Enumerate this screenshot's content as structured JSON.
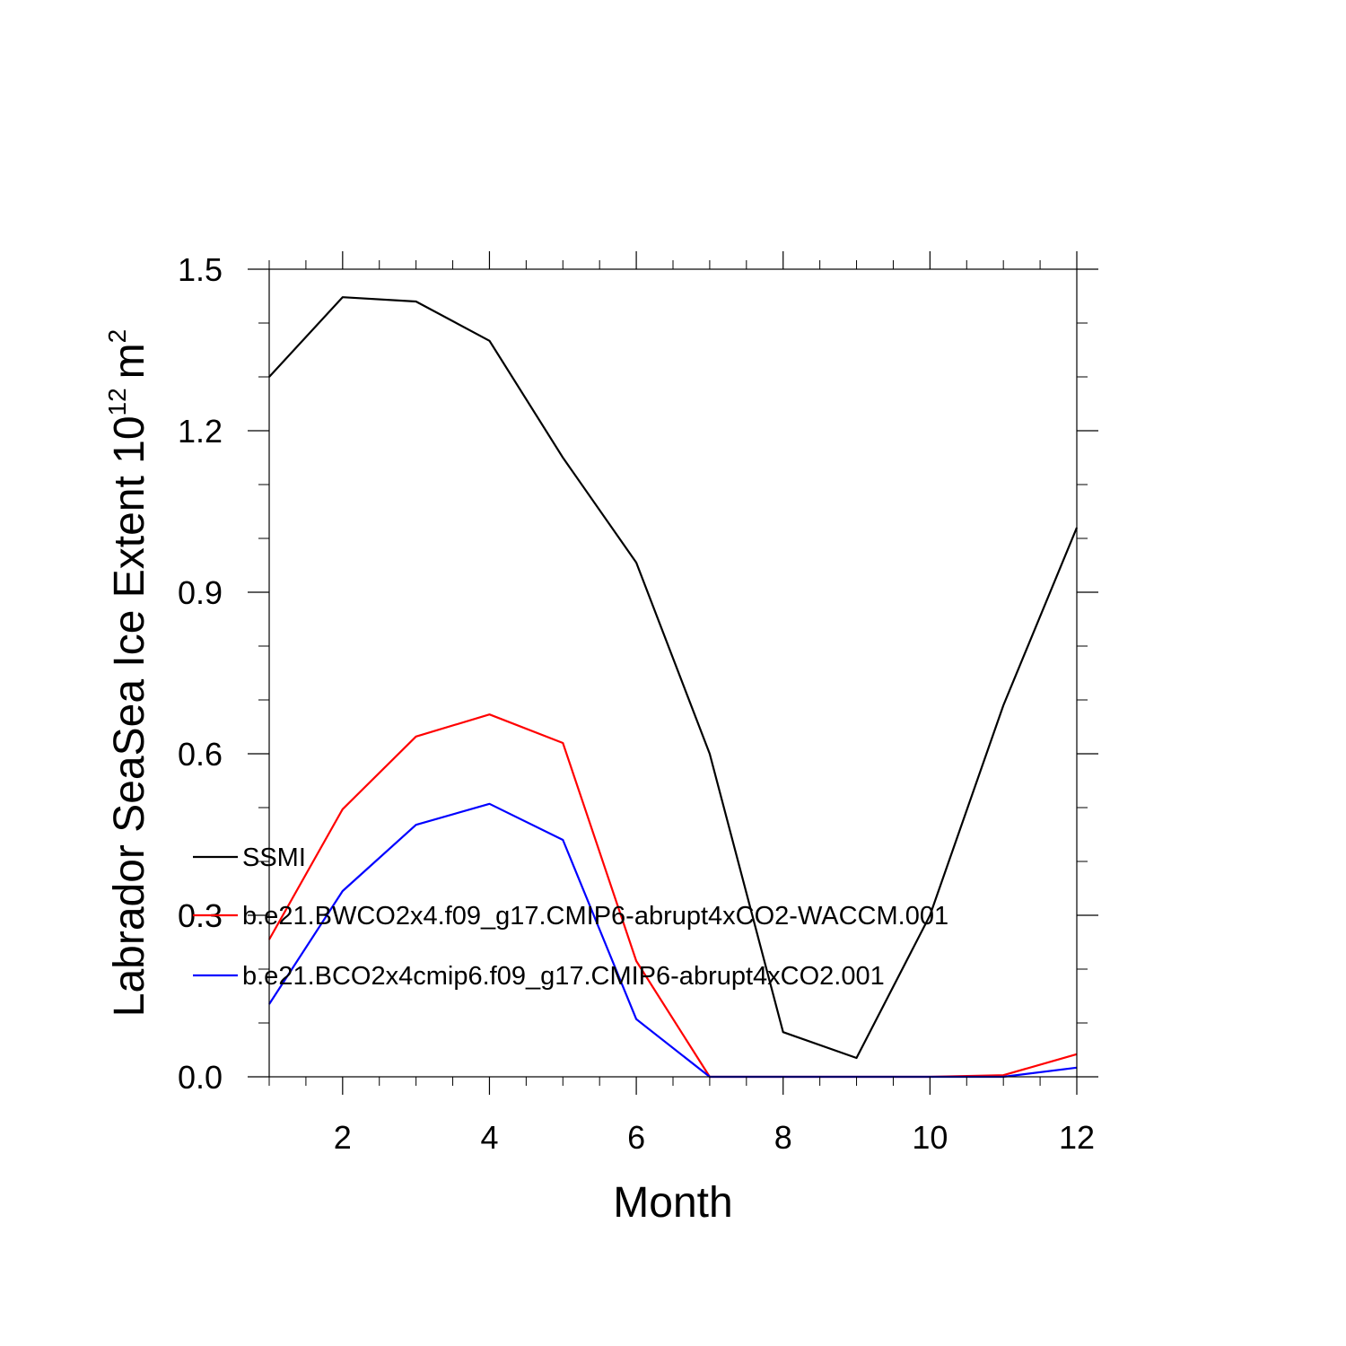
{
  "chart_data": {
    "type": "line",
    "title": "",
    "xlabel": "Month",
    "ylabel": "Labrador SeaSea Ice Extent 10",
    "ylabel_sup": "12",
    "ylabel_unit": "m",
    "ylabel_unit_sup": "2",
    "xlim": [
      1,
      12
    ],
    "ylim": [
      0,
      1.5
    ],
    "x_ticks": [
      2,
      4,
      6,
      8,
      10,
      12
    ],
    "y_ticks": [
      0.0,
      0.3,
      0.6,
      0.9,
      1.2,
      1.5
    ],
    "y_tick_labels": [
      "0.0",
      "0.3",
      "0.6",
      "0.9",
      "1.2",
      "1.5"
    ],
    "x": [
      1,
      2,
      3,
      4,
      5,
      6,
      7,
      8,
      9,
      10,
      11,
      12
    ],
    "legend_position": "left-middle",
    "series": [
      {
        "name": "SSMI",
        "color": "#000000",
        "values": [
          1.3,
          1.448,
          1.44,
          1.367,
          1.15,
          0.955,
          0.6,
          0.083,
          0.035,
          0.3,
          0.69,
          1.02
        ]
      },
      {
        "name": "b.e21.BWCO2x4.f09_g17.CMIP6-abrupt4xCO2-WACCM.001",
        "color": "#ff0000",
        "values": [
          0.255,
          0.497,
          0.632,
          0.673,
          0.62,
          0.215,
          0.0,
          0.0,
          0.0,
          0.0,
          0.003,
          0.042
        ]
      },
      {
        "name": "b.e21.BCO2x4cmip6.f09_g17.CMIP6-abrupt4xCO2.001",
        "color": "#0000ff",
        "values": [
          0.135,
          0.345,
          0.468,
          0.507,
          0.44,
          0.107,
          0.0,
          0.0,
          0.0,
          0.0,
          0.0,
          0.017
        ]
      }
    ]
  }
}
